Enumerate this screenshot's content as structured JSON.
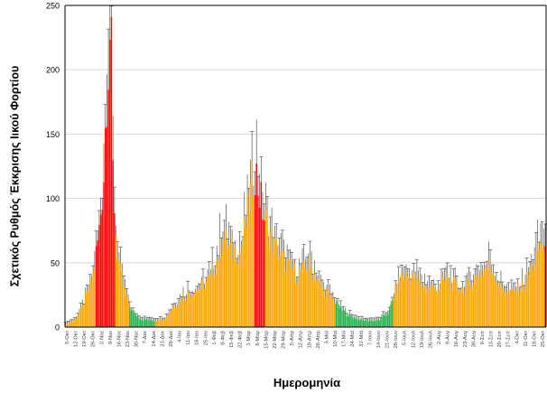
{
  "chart_data": {
    "type": "bar",
    "title": "",
    "xlabel": "Ημερομηνία",
    "ylabel": "Σχετικός Ρυθμός Έκκρισης Ιικού Φορτίου",
    "ylim": [
      0,
      250
    ],
    "yticks": [
      0,
      50,
      100,
      150,
      200,
      250
    ],
    "grid": true,
    "colors": {
      "red": "#ff0000",
      "orange": "#ffa500",
      "green": "#22b14c",
      "error": "#555555",
      "tick_text": "#444444",
      "grid": "#d9d9d9"
    },
    "xtick_labels": [
      "5-Οκτ",
      "12-Οκτ",
      "19-Οκτ",
      "26-Οκτ",
      "2-Νοε",
      "9-Νοε",
      "16-Νοε",
      "23-Νοε",
      "30-Νοε",
      "7-Δεκ",
      "14-Δεκ",
      "21-Δεκ",
      "28-Δεκ",
      "4-Ιαν",
      "11-Ιαν",
      "18-Ιαν",
      "25-Ιαν",
      "1-Φεβ",
      "8-Φεβ",
      "15-Φεβ",
      "22-Φεβ",
      "1-Μαρ",
      "8-Μαρ",
      "15-Μαρ",
      "22-Μαρ",
      "29-Μαρ",
      "5-Απρ",
      "12-Απρ",
      "19-Απρ",
      "26-Απρ",
      "3-Μαϊ",
      "10-Μαϊ",
      "17-Μαϊ",
      "24-Μαϊ",
      "31-Μαϊ",
      "7-Ιουν",
      "14-Ιουν",
      "21-Ιουν",
      "28-Ιουν",
      "5-Ιουλ",
      "12-Ιουλ",
      "19-Ιουλ",
      "26-Ιουλ",
      "2-Αυγ",
      "9-Αυγ",
      "16-Αυγ",
      "23-Αυγ",
      "30-Αυγ",
      "6-Σεπ",
      "13-Σεπ",
      "20-Σεπ",
      "27-Σεπ",
      "4-Οκτ",
      "11-Οκτ",
      "18-Οκτ",
      "25-Οκτ"
    ],
    "anchors": [
      [
        0,
        2
      ],
      [
        6,
        5
      ],
      [
        12,
        18
      ],
      [
        18,
        40
      ],
      [
        22,
        75
      ],
      [
        25,
        120
      ],
      [
        27,
        190
      ],
      [
        29,
        230
      ],
      [
        30,
        205
      ],
      [
        31,
        120
      ],
      [
        33,
        72
      ],
      [
        35,
        48
      ],
      [
        38,
        32
      ],
      [
        41,
        18
      ],
      [
        45,
        10
      ],
      [
        50,
        6
      ],
      [
        58,
        5
      ],
      [
        65,
        6
      ],
      [
        70,
        15
      ],
      [
        78,
        24
      ],
      [
        88,
        30
      ],
      [
        95,
        38
      ],
      [
        100,
        55
      ],
      [
        103,
        70
      ],
      [
        108,
        60
      ],
      [
        115,
        58
      ],
      [
        120,
        95
      ],
      [
        124,
        125
      ],
      [
        126,
        110
      ],
      [
        130,
        85
      ],
      [
        137,
        62
      ],
      [
        145,
        48
      ],
      [
        152,
        40
      ],
      [
        160,
        48
      ],
      [
        168,
        30
      ],
      [
        175,
        22
      ],
      [
        180,
        14
      ],
      [
        187,
        8
      ],
      [
        195,
        5
      ],
      [
        205,
        5
      ],
      [
        212,
        12
      ],
      [
        216,
        28
      ],
      [
        220,
        40
      ],
      [
        228,
        38
      ],
      [
        236,
        30
      ],
      [
        244,
        30
      ],
      [
        250,
        38
      ],
      [
        256,
        30
      ],
      [
        262,
        30
      ],
      [
        270,
        40
      ],
      [
        278,
        48
      ],
      [
        285,
        30
      ],
      [
        292,
        26
      ],
      [
        300,
        32
      ],
      [
        306,
        48
      ],
      [
        312,
        66
      ],
      [
        314,
        60
      ]
    ],
    "color_segments": [
      [
        0,
        19,
        "orange"
      ],
      [
        20,
        32,
        "red"
      ],
      [
        33,
        41,
        "orange"
      ],
      [
        42,
        58,
        "green"
      ],
      [
        59,
        123,
        "orange"
      ],
      [
        124,
        130,
        "red"
      ],
      [
        131,
        176,
        "orange"
      ],
      [
        177,
        214,
        "green"
      ],
      [
        215,
        313,
        "orange"
      ],
      [
        314,
        314,
        "red"
      ]
    ],
    "bar_count": 315
  }
}
